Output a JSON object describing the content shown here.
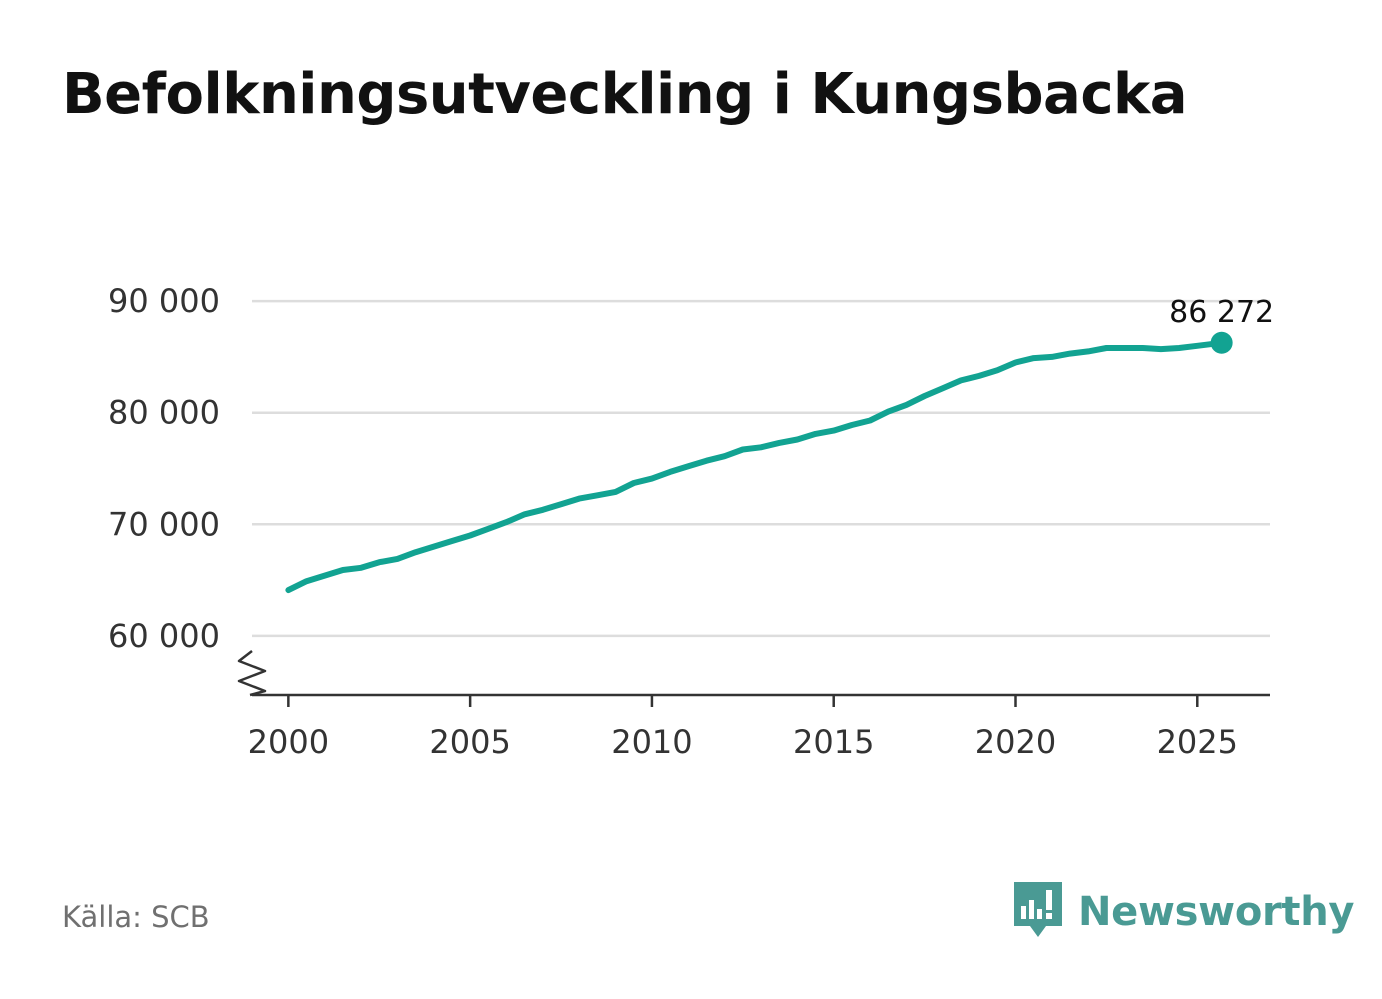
{
  "title": "Befolkningsutveckling i Kungsbacka",
  "source": "Källa: SCB",
  "brand": {
    "name": "Newsworthy",
    "icon": "newsworthy-logo-icon",
    "color": "#4a9a94"
  },
  "chart_data": {
    "type": "line",
    "title": "Befolkningsutveckling i Kungsbacka",
    "xlabel": "",
    "ylabel": "",
    "xlim": [
      1999.0,
      2027.0
    ],
    "ylim": [
      54700,
      91000
    ],
    "xticks": [
      2000,
      2005,
      2010,
      2015,
      2020,
      2025
    ],
    "xtick_labels": [
      "2000",
      "2005",
      "2010",
      "2015",
      "2020",
      "2025"
    ],
    "yticks": [
      60000,
      70000,
      80000,
      90000
    ],
    "ytick_labels": [
      "60 000",
      "70 000",
      "80 000",
      "90 000"
    ],
    "grid": "horizontal",
    "axis_break": true,
    "line_color": "#12a392",
    "series": [
      {
        "x": [
          2000.0,
          2000.5,
          2001.0,
          2001.5,
          2002.0,
          2002.5,
          2003.0,
          2003.5,
          2004.0,
          2004.5,
          2005.0,
          2005.5,
          2006.0,
          2006.5,
          2007.0,
          2007.5,
          2008.0,
          2008.5,
          2009.0,
          2009.5,
          2010.0,
          2010.5,
          2011.0,
          2011.5,
          2012.0,
          2012.5,
          2013.0,
          2013.5,
          2014.0,
          2014.5,
          2015.0,
          2015.5,
          2016.0,
          2016.5,
          2017.0,
          2017.5,
          2018.0,
          2018.5,
          2019.0,
          2019.5,
          2020.0,
          2020.5,
          2021.0,
          2021.5,
          2022.0,
          2022.5,
          2023.0,
          2023.5,
          2024.0,
          2024.5,
          2025.0,
          2025.67
        ],
        "values": [
          64100,
          64900,
          65400,
          65900,
          66100,
          66600,
          66900,
          67500,
          68000,
          68500,
          69000,
          69600,
          70200,
          70900,
          71300,
          71800,
          72300,
          72600,
          72900,
          73700,
          74100,
          74700,
          75200,
          75700,
          76100,
          76700,
          76900,
          77300,
          77600,
          78100,
          78400,
          78900,
          79300,
          80100,
          80700,
          81500,
          82200,
          82900,
          83300,
          83800,
          84500,
          84900,
          85000,
          85300,
          85500,
          85800,
          85800,
          85800,
          85700,
          85800,
          86000,
          86272
        ]
      }
    ],
    "last_point": {
      "x": 2025.67,
      "value": 86272,
      "label": "86 272"
    }
  }
}
